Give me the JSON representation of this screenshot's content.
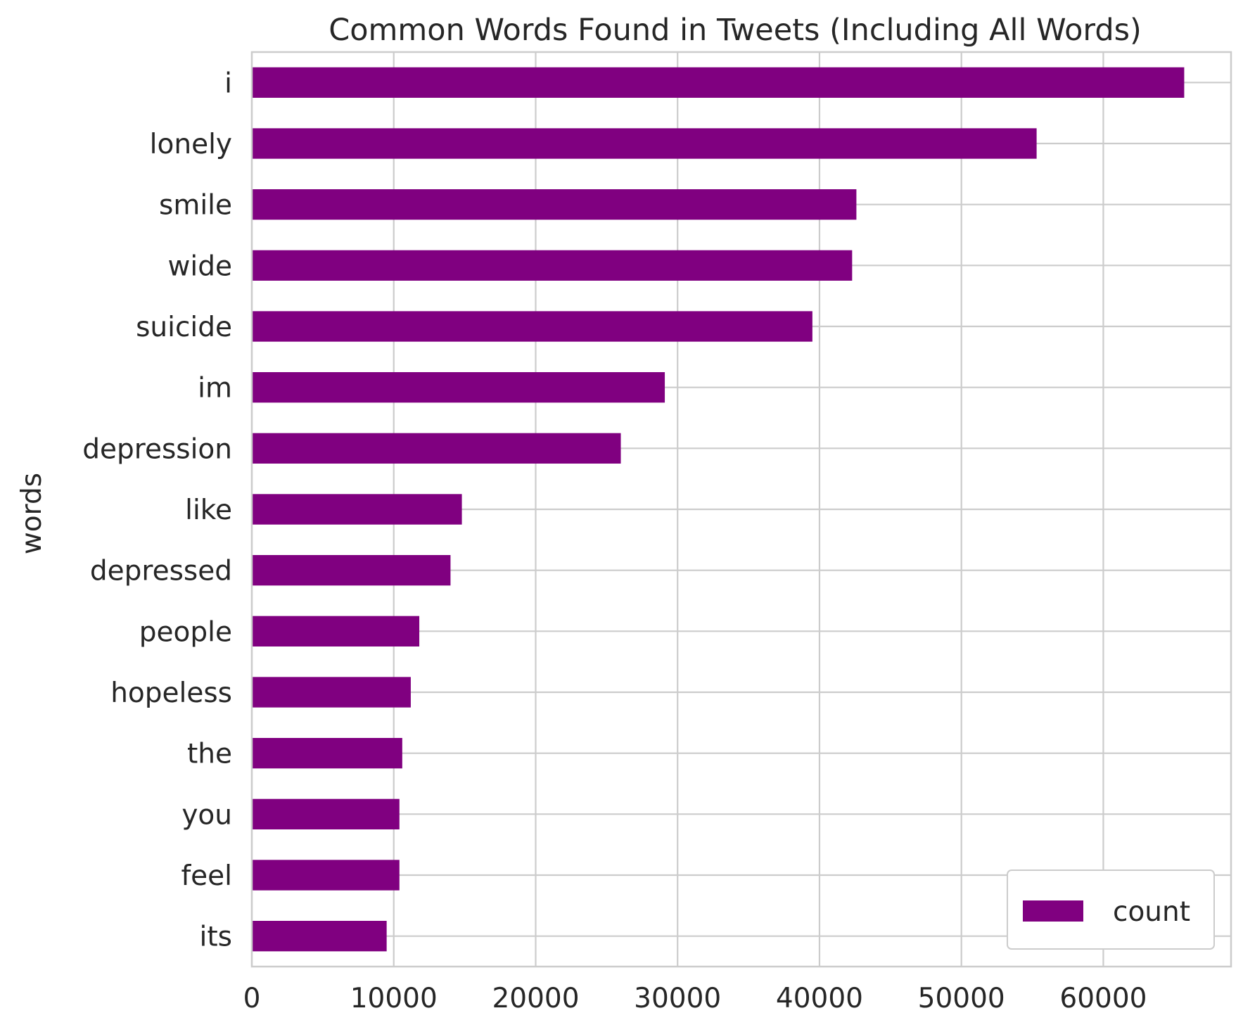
{
  "chart_data": {
    "type": "bar",
    "orientation": "horizontal",
    "title": "Common Words Found in Tweets (Including All Words)",
    "xlabel": "",
    "ylabel": "words",
    "categories": [
      "i",
      "lonely",
      "smile",
      "wide",
      "suicide",
      "im",
      "depression",
      "like",
      "depressed",
      "people",
      "hopeless",
      "the",
      "you",
      "feel",
      "its"
    ],
    "series": [
      {
        "name": "count",
        "color": "#800080",
        "values": [
          65700,
          55300,
          42600,
          42300,
          39500,
          29100,
          26000,
          14800,
          14000,
          11800,
          11200,
          10600,
          10400,
          10400,
          9500
        ]
      }
    ],
    "xlim": [
      0,
      69000
    ],
    "xticks": [
      0,
      10000,
      20000,
      30000,
      40000,
      50000,
      60000
    ],
    "xtick_labels": [
      "0",
      "10000",
      "20000",
      "30000",
      "40000",
      "50000",
      "60000"
    ],
    "grid": true,
    "legend_position": "bottom-right"
  }
}
